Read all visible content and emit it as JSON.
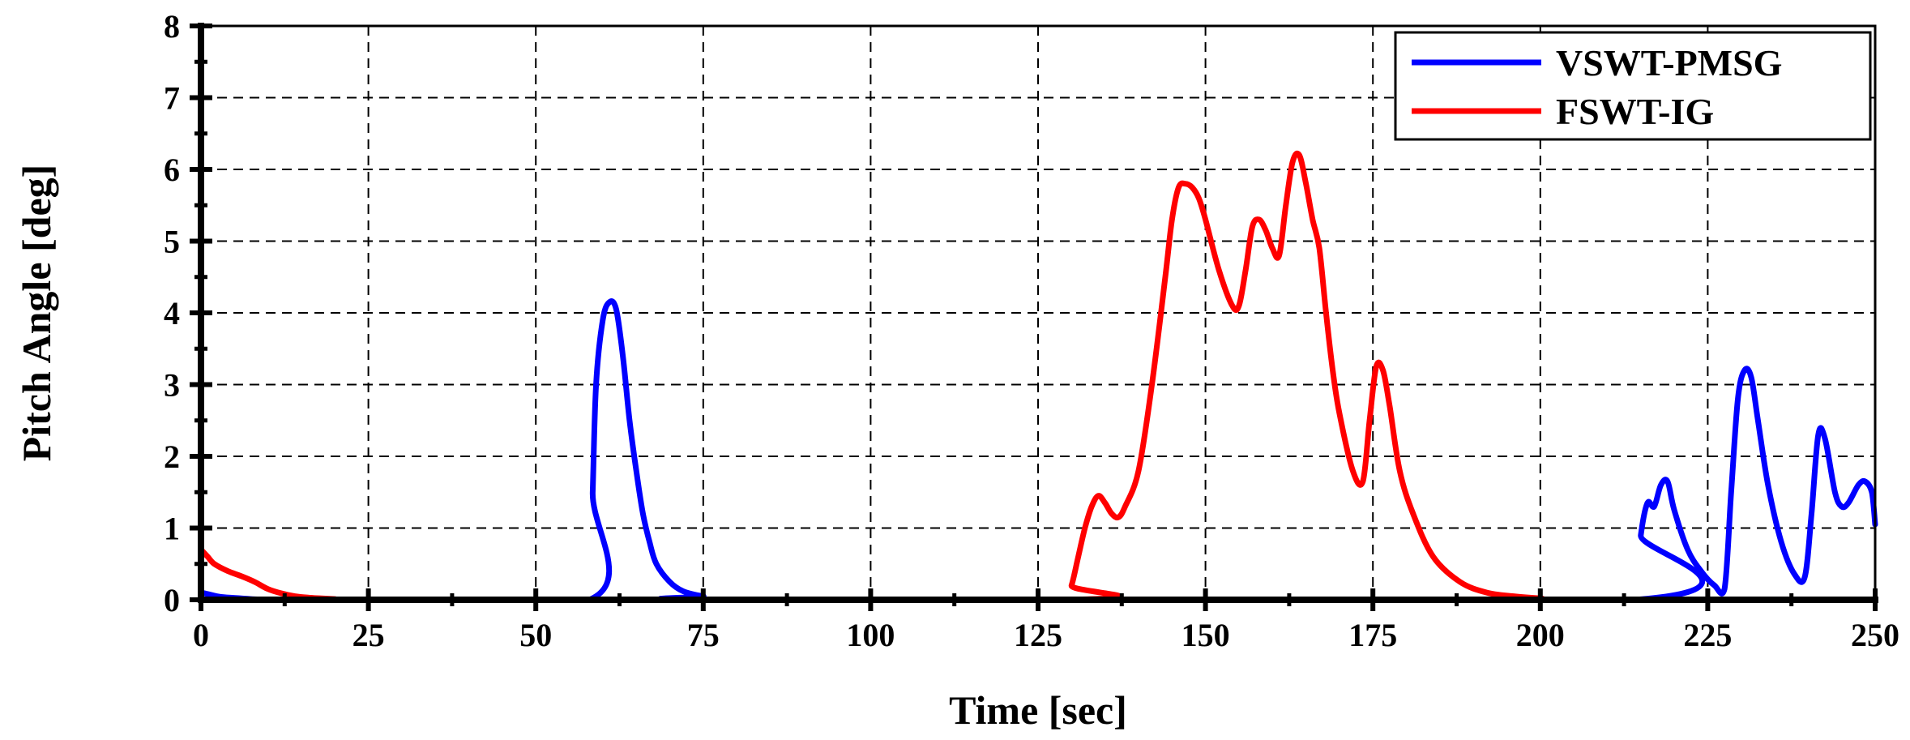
{
  "chart_data": {
    "type": "line",
    "title": "",
    "xlabel": "Time [sec]",
    "ylabel": "Pitch Angle [deg]",
    "xlim": [
      0,
      250
    ],
    "ylim": [
      0,
      8
    ],
    "xticks": [
      0,
      25,
      50,
      75,
      100,
      125,
      150,
      175,
      200,
      225,
      250
    ],
    "yticks": [
      0,
      1,
      2,
      3,
      4,
      5,
      6,
      7,
      8
    ],
    "grid": true,
    "legend_position": "top-right",
    "series": [
      {
        "name": "VSWT-PMSG",
        "color": "#0000ff",
        "x": [
          0,
          1,
          3,
          6,
          10,
          20,
          58,
          58.5,
          59,
          60,
          61,
          62,
          63,
          64,
          65,
          66,
          67,
          68,
          70,
          72,
          75,
          80,
          214,
          215,
          216,
          217,
          218,
          219,
          220,
          222,
          224,
          226,
          227.5,
          228.5,
          229.5,
          230.5,
          231.5,
          232.5,
          234,
          236,
          238,
          239.5,
          240.5,
          241.5,
          242.5,
          244,
          245,
          246,
          247.5,
          248.5,
          249.5,
          250
        ],
        "y": [
          0.1,
          0.08,
          0.04,
          0.02,
          0,
          0,
          0,
          1.5,
          3.0,
          3.9,
          4.15,
          4.05,
          3.4,
          2.5,
          1.8,
          1.2,
          0.8,
          0.5,
          0.25,
          0.12,
          0.05,
          0,
          0,
          0.9,
          1.35,
          1.3,
          1.6,
          1.65,
          1.25,
          0.7,
          0.4,
          0.2,
          0.15,
          1.5,
          2.8,
          3.2,
          3.1,
          2.5,
          1.6,
          0.8,
          0.35,
          0.32,
          1.2,
          2.3,
          2.25,
          1.5,
          1.3,
          1.35,
          1.6,
          1.65,
          1.5,
          1.05
        ]
      },
      {
        "name": "FSWT-IG",
        "color": "#ff0000",
        "x": [
          0,
          1,
          2,
          4,
          6,
          8,
          10,
          12,
          14,
          16,
          18,
          20,
          22,
          129,
          130,
          131,
          132,
          133,
          134,
          135,
          136,
          137,
          138,
          140,
          142,
          144,
          145,
          146,
          147,
          148,
          149,
          150,
          152,
          154,
          155,
          156,
          157,
          158,
          159,
          160,
          161,
          162,
          163,
          164,
          165,
          166,
          167,
          168,
          169,
          170,
          172,
          173.5,
          174.5,
          175.5,
          176.5,
          177.5,
          179,
          181,
          184,
          188,
          192,
          196,
          200,
          205
        ],
        "y": [
          0.7,
          0.6,
          0.5,
          0.4,
          0.33,
          0.25,
          0.15,
          0.09,
          0.05,
          0.03,
          0.02,
          0.01,
          0,
          0,
          0.2,
          0.6,
          1.0,
          1.3,
          1.45,
          1.35,
          1.2,
          1.15,
          1.3,
          1.8,
          3.0,
          4.5,
          5.3,
          5.75,
          5.8,
          5.75,
          5.6,
          5.3,
          4.6,
          4.1,
          4.1,
          4.6,
          5.2,
          5.3,
          5.15,
          4.9,
          4.8,
          5.5,
          6.1,
          6.2,
          5.8,
          5.3,
          4.9,
          4.0,
          3.2,
          2.6,
          1.8,
          1.65,
          2.5,
          3.25,
          3.2,
          2.7,
          1.8,
          1.2,
          0.6,
          0.25,
          0.1,
          0.05,
          0.02,
          0
        ]
      }
    ]
  }
}
